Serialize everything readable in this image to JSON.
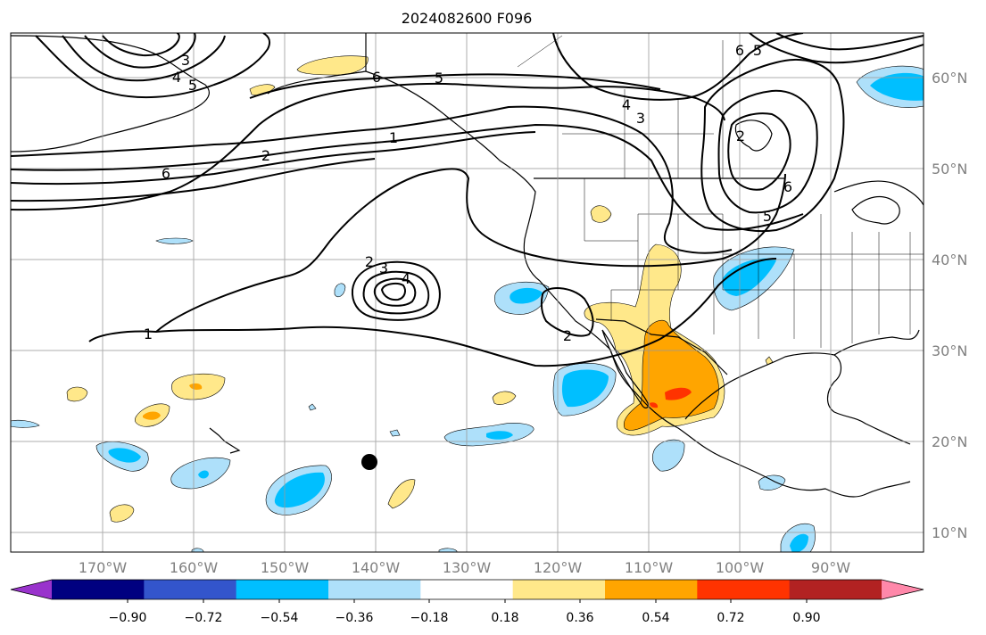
{
  "title": "2024082600 F096",
  "map": {
    "longitude_labels": [
      "170°W",
      "160°W",
      "150°W",
      "140°W",
      "130°W",
      "120°W",
      "110°W",
      "100°W",
      "90°W"
    ],
    "latitude_labels": [
      "60°N",
      "50°N",
      "40°N",
      "30°N",
      "20°N",
      "10°N"
    ],
    "contour_labels": [
      "3",
      "4",
      "5",
      "6",
      "5",
      "6",
      "2",
      "1",
      "5",
      "4",
      "3",
      "6",
      "5",
      "2",
      "2",
      "3",
      "4",
      "1",
      "2",
      "6"
    ],
    "grid": true,
    "marker": "storm-center-dot"
  },
  "colorbar": {
    "tick_labels": [
      "−0.90",
      "−0.72",
      "−0.54",
      "−0.36",
      "−0.18",
      "0.18",
      "0.36",
      "0.54",
      "0.72",
      "0.90"
    ],
    "colors": [
      "#9933cc",
      "#000080",
      "#3355cc",
      "#00bfff",
      "#aee0fa",
      "#ffffff",
      "#ffe88a",
      "#ffa500",
      "#ff3300",
      "#b22222",
      "#ff88aa"
    ]
  }
}
